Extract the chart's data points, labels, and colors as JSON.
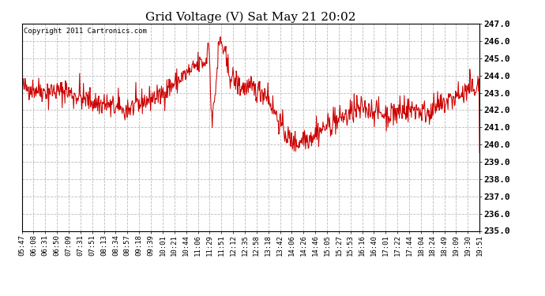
{
  "title": "Grid Voltage (V) Sat May 21 20:02",
  "copyright": "Copyright 2011 Cartronics.com",
  "line_color": "#cc0000",
  "background_color": "#ffffff",
  "plot_bg_color": "#ffffff",
  "grid_color": "#bbbbbb",
  "ylim": [
    235.0,
    247.0
  ],
  "ytick_step": 1.0,
  "x_labels": [
    "05:47",
    "06:08",
    "06:31",
    "06:50",
    "07:09",
    "07:31",
    "07:51",
    "08:13",
    "08:34",
    "08:57",
    "09:18",
    "09:39",
    "10:01",
    "10:21",
    "10:44",
    "11:06",
    "11:29",
    "11:51",
    "12:12",
    "12:35",
    "12:58",
    "13:18",
    "13:42",
    "14:06",
    "14:26",
    "14:46",
    "15:05",
    "15:27",
    "15:53",
    "16:16",
    "16:40",
    "17:01",
    "17:22",
    "17:44",
    "18:04",
    "18:24",
    "18:49",
    "19:09",
    "19:30",
    "19:51"
  ],
  "seed": 42,
  "n_points": 840,
  "title_fontsize": 11,
  "copyright_fontsize": 6.5,
  "ytick_fontsize": 8,
  "xtick_fontsize": 6.5,
  "line_width": 0.75
}
